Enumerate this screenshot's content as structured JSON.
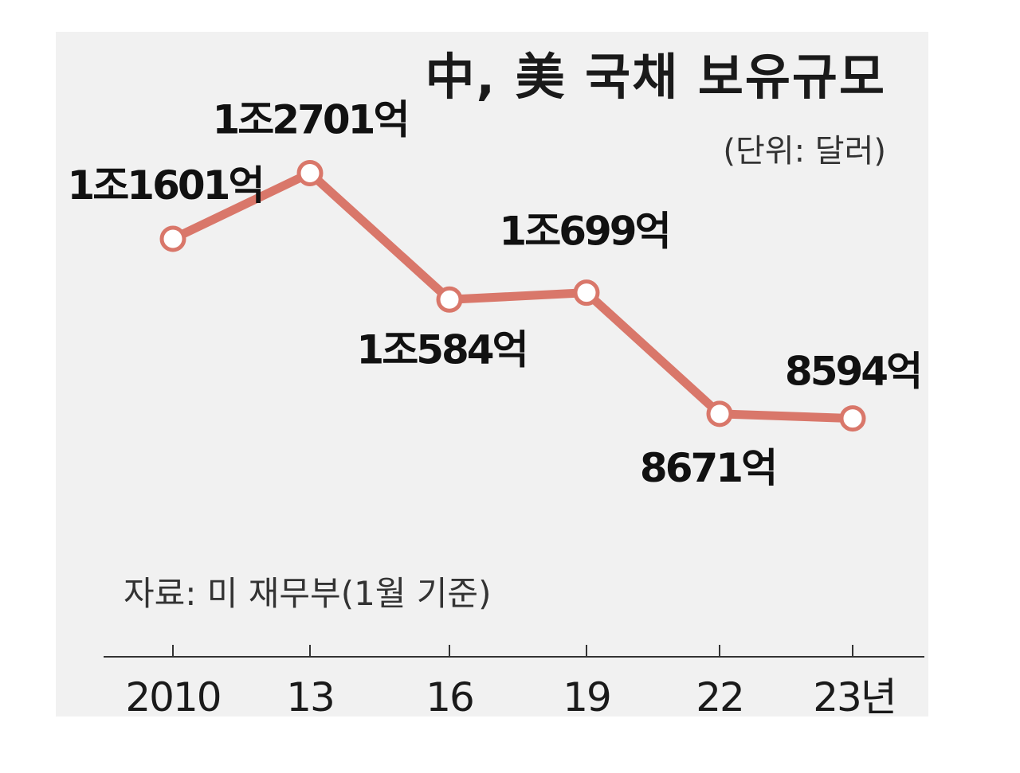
{
  "chart_data": {
    "type": "line",
    "title": "中, 美 국채 보유규모",
    "unit_label": "(단위: 달러)",
    "source": "자료: 미 재무부(1월 기준)",
    "categories": [
      "2010",
      "13",
      "16",
      "19",
      "22",
      "23년"
    ],
    "values": [
      11601,
      12701,
      10584,
      10699,
      8671,
      8594
    ],
    "value_unit": "억 달러",
    "data_labels": [
      "1조1601억",
      "1조2701억",
      "1조584억",
      "1조699억",
      "8671억",
      "8594억"
    ],
    "ylim": [
      7000,
      14000
    ],
    "grid": false,
    "legend": "none",
    "line_color": "#d9776a"
  }
}
